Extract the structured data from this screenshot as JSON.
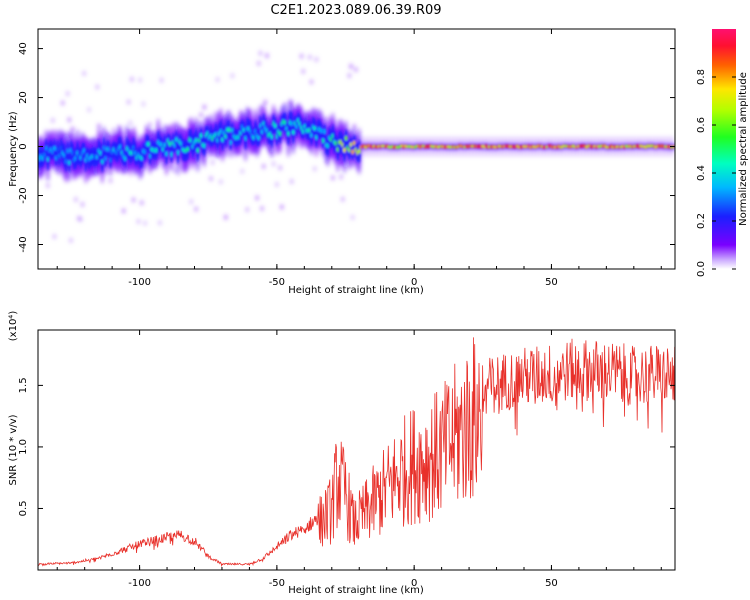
{
  "title": "C2E1.2023.089.06.39.R09",
  "colors": {
    "snr_line": "#e8302a",
    "axis": "#000000"
  },
  "chart_data": [
    {
      "type": "heatmap",
      "xlabel": "Height of straight line (km)",
      "ylabel": "Frequency (Hz)",
      "xlim": [
        -137,
        95
      ],
      "ylim": [
        -50,
        48
      ],
      "xticks": [
        -100,
        -50,
        0,
        50
      ],
      "xtick_labels": [
        "-100",
        "-50",
        "0",
        "50"
      ],
      "yticks": [
        -40,
        -20,
        0,
        20,
        40
      ],
      "ytick_labels": [
        "-40",
        "-20",
        "0",
        "20",
        "40"
      ],
      "colorbar": {
        "label": "Normalized spectral amplitude",
        "range": [
          0,
          1
        ],
        "ticks": [
          0.0,
          0.2,
          0.4,
          0.6,
          0.8
        ],
        "tick_labels": [
          "0.0",
          "0.2",
          "0.4",
          "0.6",
          "0.8"
        ],
        "colormap": "rainbow (violet-blue-cyan-green-yellow-red-magenta)"
      },
      "ridge": {
        "x": [
          -137,
          -120,
          -100,
          -80,
          -70,
          -60,
          -50,
          -40,
          -35,
          -30,
          -25,
          -20,
          -15,
          -10,
          0,
          20,
          50,
          95
        ],
        "frequency": [
          -3,
          -4,
          -2,
          1,
          4,
          6,
          7,
          8,
          5,
          2,
          1,
          0,
          0,
          0,
          0,
          0,
          0,
          0
        ],
        "peak_amplitude": [
          0.35,
          0.35,
          0.4,
          0.45,
          0.45,
          0.4,
          0.45,
          0.45,
          0.4,
          0.5,
          0.7,
          0.85,
          0.9,
          0.85,
          0.8,
          0.9,
          0.9,
          0.85
        ]
      }
    },
    {
      "type": "line",
      "xlabel": "Height of straight line (km)",
      "ylabel": "SNR (10 * v/v)",
      "yscale_label": "(x10⁴)",
      "xlim": [
        -137,
        95
      ],
      "ylim": [
        0,
        1.95
      ],
      "xticks": [
        -100,
        -50,
        0,
        50
      ],
      "xtick_labels": [
        "-100",
        "-50",
        "0",
        "50"
      ],
      "yticks": [
        0.5,
        1.0,
        1.5
      ],
      "ytick_labels": [
        "0.5",
        "1.0",
        "1.5"
      ],
      "series": [
        {
          "x": [
            -137,
            -125,
            -115,
            -100,
            -90,
            -85,
            -80,
            -75,
            -70,
            -60,
            -55,
            -50,
            -45,
            -40,
            -35,
            -30,
            -28,
            -25,
            -22,
            -20,
            -15,
            -10,
            -5,
            0,
            5,
            10,
            15,
            20,
            25,
            30,
            40,
            50,
            60,
            70,
            80,
            95
          ],
          "values": [
            0.05,
            0.06,
            0.1,
            0.22,
            0.28,
            0.3,
            0.25,
            0.12,
            0.05,
            0.05,
            0.1,
            0.2,
            0.3,
            0.35,
            0.45,
            0.6,
            0.9,
            0.75,
            0.45,
            0.5,
            0.65,
            0.8,
            0.95,
            1.05,
            1.1,
            1.15,
            1.3,
            1.45,
            1.55,
            1.6,
            1.65,
            1.68,
            1.72,
            1.7,
            1.66,
            1.68
          ]
        }
      ]
    }
  ]
}
